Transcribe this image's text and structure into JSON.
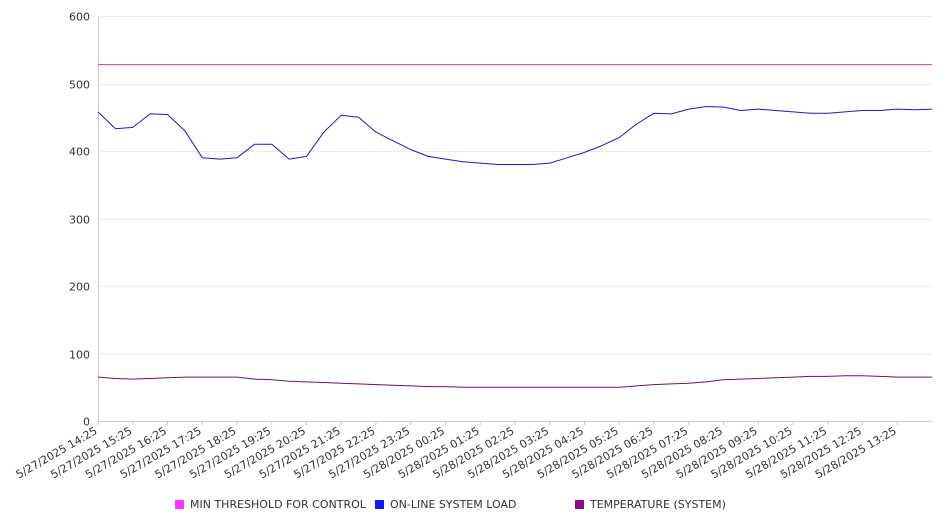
{
  "chart_data": {
    "type": "line",
    "title": "",
    "xlabel": "",
    "ylabel": "",
    "ylim": [
      0,
      600
    ],
    "y_ticks": [
      0,
      100,
      200,
      300,
      400,
      500,
      600
    ],
    "grid": "horizontal",
    "legend_position": "bottom",
    "x_tick_labels": [
      "5/27/2025 14:25",
      "5/27/2025 15:25",
      "5/27/2025 16:25",
      "5/27/2025 17:25",
      "5/27/2025 18:25",
      "5/27/2025 19:25",
      "5/27/2025 20:25",
      "5/27/2025 21:25",
      "5/27/2025 22:25",
      "5/27/2025 23:25",
      "5/28/2025 00:25",
      "5/28/2025 01:25",
      "5/28/2025 02:25",
      "5/28/2025 03:25",
      "5/28/2025 04:25",
      "5/28/2025 05:25",
      "5/28/2025 06:25",
      "5/28/2025 07:25",
      "5/28/2025 08:25",
      "5/28/2025 09:25",
      "5/28/2025 10:25",
      "5/28/2025 11:25",
      "5/28/2025 12:25",
      "5/28/2025 13:25"
    ],
    "x": [
      "5/27/2025 14:25",
      "5/27/2025 14:55",
      "5/27/2025 15:25",
      "5/27/2025 15:55",
      "5/27/2025 16:25",
      "5/27/2025 16:55",
      "5/27/2025 17:25",
      "5/27/2025 17:55",
      "5/27/2025 18:25",
      "5/27/2025 18:55",
      "5/27/2025 19:25",
      "5/27/2025 19:55",
      "5/27/2025 20:25",
      "5/27/2025 20:55",
      "5/27/2025 21:25",
      "5/27/2025 21:55",
      "5/27/2025 22:25",
      "5/27/2025 22:55",
      "5/27/2025 23:25",
      "5/27/2025 23:55",
      "5/28/2025 00:25",
      "5/28/2025 00:55",
      "5/28/2025 01:25",
      "5/28/2025 01:55",
      "5/28/2025 02:25",
      "5/28/2025 02:55",
      "5/28/2025 03:25",
      "5/28/2025 03:55",
      "5/28/2025 04:25",
      "5/28/2025 04:55",
      "5/28/2025 05:25",
      "5/28/2025 05:55",
      "5/28/2025 06:25",
      "5/28/2025 06:55",
      "5/28/2025 07:25",
      "5/28/2025 07:55",
      "5/28/2025 08:25",
      "5/28/2025 08:55",
      "5/28/2025 09:25",
      "5/28/2025 09:55",
      "5/28/2025 10:25",
      "5/28/2025 10:55",
      "5/28/2025 11:25",
      "5/28/2025 11:55",
      "5/28/2025 12:25",
      "5/28/2025 12:55",
      "5/28/2025 13:25",
      "5/28/2025 13:55",
      "5/28/2025 14:25"
    ],
    "series": [
      {
        "name": "MIN THRESHOLD FOR CONTROL",
        "color": "#cc33cc",
        "values": [
          528,
          528,
          528,
          528,
          528,
          528,
          528,
          528,
          528,
          528,
          528,
          528,
          528,
          528,
          528,
          528,
          528,
          528,
          528,
          528,
          528,
          528,
          528,
          528,
          528,
          528,
          528,
          528,
          528,
          528,
          528,
          528,
          528,
          528,
          528,
          528,
          528,
          528,
          528,
          528,
          528,
          528,
          528,
          528,
          528,
          528,
          528,
          528,
          528
        ]
      },
      {
        "name": "ON-LINE SYSTEM LOAD",
        "color": "#1a1acc",
        "values": [
          458,
          433,
          435,
          455,
          454,
          430,
          390,
          388,
          390,
          410,
          410,
          388,
          392,
          428,
          453,
          450,
          428,
          415,
          402,
          392,
          388,
          384,
          382,
          380,
          380,
          380,
          382,
          390,
          398,
          408,
          420,
          440,
          456,
          455,
          462,
          466,
          465,
          460,
          462,
          460,
          458,
          456,
          456,
          458,
          460,
          460,
          462,
          461,
          462
        ]
      },
      {
        "name": "TEMPERATURE (SYSTEM)",
        "color": "#7a0a7a",
        "values": [
          65,
          63,
          62,
          63,
          64,
          65,
          65,
          65,
          65,
          62,
          61,
          59,
          58,
          57,
          56,
          55,
          54,
          53,
          52,
          51,
          51,
          50,
          50,
          50,
          50,
          50,
          50,
          50,
          50,
          50,
          50,
          52,
          54,
          55,
          56,
          58,
          61,
          62,
          63,
          64,
          65,
          66,
          66,
          67,
          67,
          66,
          65,
          65,
          65
        ]
      }
    ]
  }
}
